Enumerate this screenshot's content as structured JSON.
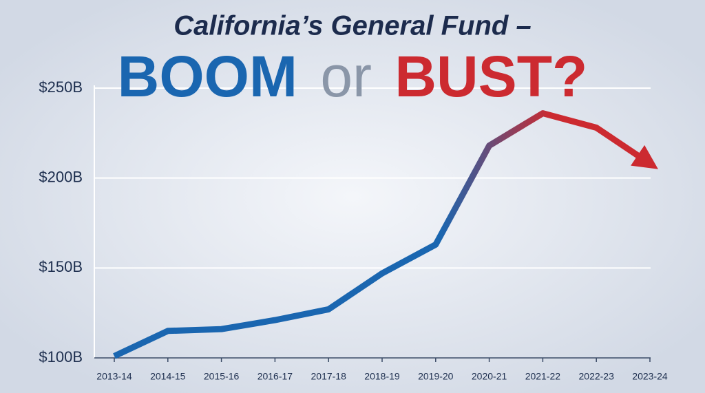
{
  "chart_data": {
    "type": "line",
    "title": "California’s General Fund –",
    "headline": [
      "BOOM",
      "or",
      "BUST?"
    ],
    "categories": [
      "2013-14",
      "2014-15",
      "2015-16",
      "2016-17",
      "2017-18",
      "2018-19",
      "2019-20",
      "2020-21",
      "2021-22",
      "2022-23",
      "2023-24"
    ],
    "values": [
      101,
      115,
      116,
      121,
      127,
      147,
      163,
      218,
      236,
      228,
      208
    ],
    "gradient": [
      "#1a66b0",
      "#cc2a30"
    ],
    "ylim": [
      100,
      250
    ],
    "yticks": [
      {
        "value": 100,
        "label": "$100B"
      },
      {
        "value": 150,
        "label": "$150B"
      },
      {
        "value": 200,
        "label": "$200B"
      },
      {
        "value": 250,
        "label": "$250B"
      }
    ],
    "grid": true
  }
}
